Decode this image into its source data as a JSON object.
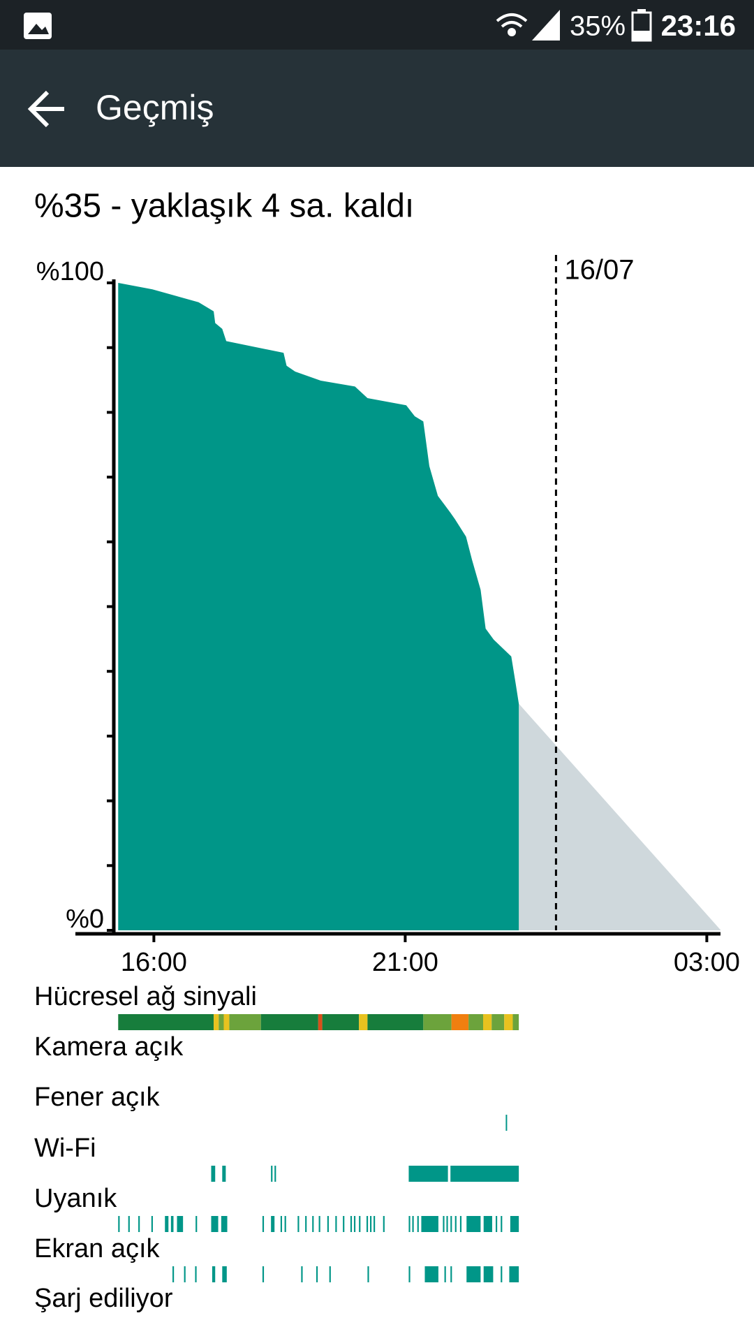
{
  "status_bar": {
    "battery": "35%",
    "time": "23:16"
  },
  "app_bar": {
    "title": "Geçmiş"
  },
  "summary": "%35 - yaklaşık 4 sa. kaldı",
  "chart_data": {
    "type": "area",
    "x": [
      15.29,
      15.97,
      16.89,
      17.19,
      17.22,
      17.36,
      17.44,
      18.58,
      18.64,
      18.81,
      19.32,
      20.0,
      20.25,
      21.02,
      21.19,
      21.36,
      21.48,
      21.65,
      21.9,
      21.99,
      22.21,
      22.33,
      22.5,
      22.6,
      22.76,
      23.11,
      23.2,
      23.26
    ],
    "values": [
      100,
      99,
      97,
      95.6,
      93.8,
      92.9,
      91,
      89.2,
      87.2,
      86.3,
      84.9,
      84,
      82.2,
      81.1,
      79.4,
      78.6,
      71.7,
      67.1,
      64.5,
      63.5,
      60.8,
      57.2,
      52.6,
      46.6,
      44.9,
      42.3,
      38,
      35
    ],
    "color": "#009688",
    "projection": {
      "x": [
        23.26,
        27.28
      ],
      "values": [
        35,
        0
      ],
      "color": "#cfd8dc"
    },
    "xlim": [
      15.2,
      27.3
    ],
    "xticks": [
      {
        "value": 16,
        "label": "16:00"
      },
      {
        "value": 21,
        "label": "21:00"
      },
      {
        "value": 27,
        "label": "03:00"
      }
    ],
    "ylim": [
      0,
      100
    ],
    "yticks": [
      {
        "value": 0,
        "label": "%0"
      },
      {
        "value": 100,
        "label": "%100"
      }
    ],
    "yminor_ticks": [
      10,
      20,
      30,
      40,
      50,
      60,
      70,
      80,
      90
    ],
    "annotations": [
      {
        "x": 24,
        "label": "16/07"
      }
    ]
  },
  "tracks": [
    {
      "name": "Hücresel ağ sinyali",
      "segments": [
        [
          15.29,
          17.19,
          "#177d3c"
        ],
        [
          17.19,
          17.29,
          "#e8c21f"
        ],
        [
          17.29,
          17.39,
          "#6ca33c"
        ],
        [
          17.39,
          17.5,
          "#e8c21f"
        ],
        [
          17.5,
          18.13,
          "#6ca33c"
        ],
        [
          18.13,
          19.27,
          "#177d3c"
        ],
        [
          19.27,
          19.35,
          "#d84f1a"
        ],
        [
          19.35,
          20.08,
          "#177d3c"
        ],
        [
          20.08,
          20.25,
          "#e8c21f"
        ],
        [
          20.25,
          21.36,
          "#177d3c"
        ],
        [
          21.36,
          21.92,
          "#6ca33c"
        ],
        [
          21.92,
          22.26,
          "#f07f10"
        ],
        [
          22.26,
          22.55,
          "#6ca33c"
        ],
        [
          22.55,
          22.72,
          "#e8c21f"
        ],
        [
          22.72,
          22.97,
          "#6ca33c"
        ],
        [
          22.97,
          23.14,
          "#e8c21f"
        ],
        [
          23.14,
          23.26,
          "#6ca33c"
        ]
      ]
    },
    {
      "name": "Kamera açık",
      "segments": []
    },
    {
      "name": "Fener açık",
      "segments": [
        [
          23.0,
          23.02,
          "#009688"
        ]
      ]
    },
    {
      "name": "Wi-Fi",
      "segments": [
        [
          17.14,
          17.22,
          "#009688"
        ],
        [
          17.36,
          17.43,
          "#009688"
        ],
        [
          18.33,
          18.36,
          "#009688"
        ],
        [
          18.4,
          18.43,
          "#009688"
        ],
        [
          21.07,
          21.85,
          "#009688"
        ],
        [
          21.9,
          23.26,
          "#009688"
        ]
      ]
    },
    {
      "name": "Uyanık",
      "segments": [
        [
          15.29,
          15.32,
          "#009688"
        ],
        [
          15.49,
          15.52,
          "#009688"
        ],
        [
          15.69,
          15.72,
          "#009688"
        ],
        [
          15.95,
          15.98,
          "#009688"
        ],
        [
          16.22,
          16.29,
          "#009688"
        ],
        [
          16.34,
          16.39,
          "#009688"
        ],
        [
          16.46,
          16.58,
          "#009688"
        ],
        [
          16.83,
          16.86,
          "#009688"
        ],
        [
          17.14,
          17.28,
          "#009688"
        ],
        [
          17.34,
          17.46,
          "#009688"
        ],
        [
          18.16,
          18.19,
          "#009688"
        ],
        [
          18.33,
          18.4,
          "#009688"
        ],
        [
          18.52,
          18.55,
          "#009688"
        ],
        [
          18.6,
          18.63,
          "#009688"
        ],
        [
          18.86,
          18.89,
          "#009688"
        ],
        [
          19.01,
          19.04,
          "#009688"
        ],
        [
          19.15,
          19.18,
          "#009688"
        ],
        [
          19.28,
          19.31,
          "#009688"
        ],
        [
          19.45,
          19.48,
          "#009688"
        ],
        [
          19.61,
          19.64,
          "#009688"
        ],
        [
          19.76,
          19.79,
          "#009688"
        ],
        [
          19.91,
          19.94,
          "#009688"
        ],
        [
          19.98,
          20.01,
          "#009688"
        ],
        [
          20.08,
          20.11,
          "#009688"
        ],
        [
          20.23,
          20.26,
          "#009688"
        ],
        [
          20.3,
          20.33,
          "#009688"
        ],
        [
          20.37,
          20.4,
          "#009688"
        ],
        [
          20.56,
          20.59,
          "#009688"
        ],
        [
          21.07,
          21.1,
          "#009688"
        ],
        [
          21.14,
          21.17,
          "#009688"
        ],
        [
          21.24,
          21.27,
          "#009688"
        ],
        [
          21.32,
          21.66,
          "#009688"
        ],
        [
          21.75,
          21.78,
          "#009688"
        ],
        [
          21.82,
          21.85,
          "#009688"
        ],
        [
          21.9,
          21.93,
          "#009688"
        ],
        [
          21.99,
          22.02,
          "#009688"
        ],
        [
          22.09,
          22.12,
          "#009688"
        ],
        [
          22.22,
          22.5,
          "#009688"
        ],
        [
          22.56,
          22.73,
          "#009688"
        ],
        [
          22.8,
          22.83,
          "#009688"
        ],
        [
          22.9,
          22.93,
          "#009688"
        ],
        [
          23.09,
          23.26,
          "#009688"
        ]
      ]
    },
    {
      "name": "Ekran açık",
      "segments": [
        [
          16.37,
          16.4,
          "#009688"
        ],
        [
          16.6,
          16.63,
          "#009688"
        ],
        [
          16.82,
          16.85,
          "#009688"
        ],
        [
          17.16,
          17.22,
          "#009688"
        ],
        [
          17.36,
          17.45,
          "#009688"
        ],
        [
          18.16,
          18.19,
          "#009688"
        ],
        [
          18.93,
          18.96,
          "#009688"
        ],
        [
          19.23,
          19.26,
          "#009688"
        ],
        [
          19.49,
          19.52,
          "#009688"
        ],
        [
          20.25,
          20.28,
          "#009688"
        ],
        [
          21.07,
          21.1,
          "#009688"
        ],
        [
          21.39,
          21.66,
          "#009688"
        ],
        [
          21.78,
          21.81,
          "#009688"
        ],
        [
          21.9,
          21.93,
          "#009688"
        ],
        [
          22.22,
          22.5,
          "#009688"
        ],
        [
          22.56,
          22.75,
          "#009688"
        ],
        [
          22.9,
          22.93,
          "#009688"
        ],
        [
          23.07,
          23.26,
          "#009688"
        ]
      ]
    },
    {
      "name": "Şarj ediliyor",
      "segments": []
    }
  ]
}
